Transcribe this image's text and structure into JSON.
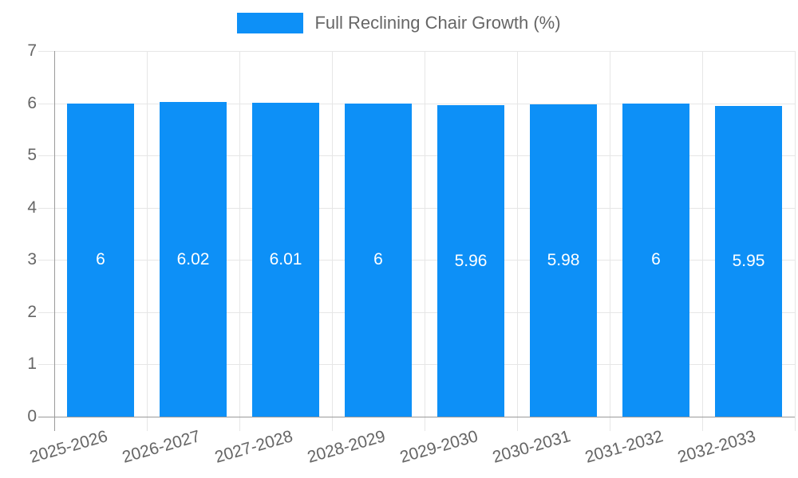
{
  "chart_data": {
    "type": "bar",
    "series_name": "Full Reclining Chair Growth (%)",
    "legend_position": "top",
    "categories": [
      "2025-2026",
      "2026-2027",
      "2027-2028",
      "2028-2029",
      "2029-2030",
      "2030-2031",
      "2031-2032",
      "2032-2033"
    ],
    "values": [
      6,
      6.02,
      6.01,
      6,
      5.96,
      5.98,
      6,
      5.95
    ],
    "data_labels": [
      "6",
      "6.02",
      "6.01",
      "6",
      "5.96",
      "5.98",
      "6",
      "5.95"
    ],
    "xlabel": "",
    "ylabel": "",
    "ylim": [
      0,
      7
    ],
    "yticks": [
      0,
      1,
      2,
      3,
      4,
      5,
      6,
      7
    ],
    "grid": true,
    "colors": {
      "bar": "#0d90f7",
      "grid": "#e6e6e6",
      "zero_line": "#9a9a9a",
      "tick_label": "#666666",
      "value_label": "#ffffff"
    }
  }
}
